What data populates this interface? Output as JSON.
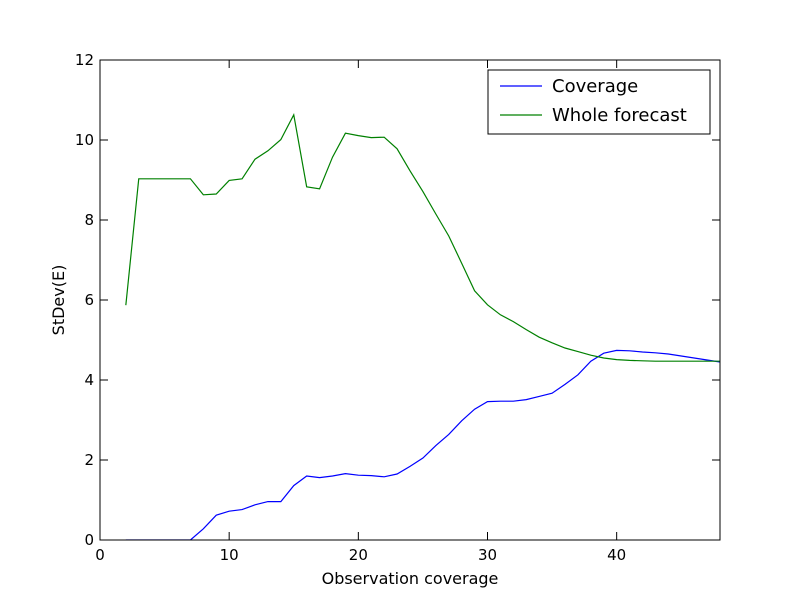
{
  "chart_data": {
    "type": "line",
    "title": "",
    "xlabel": "Observation coverage",
    "ylabel": "StDev(E)",
    "xlim": [
      0,
      48
    ],
    "ylim": [
      0,
      12
    ],
    "xticks": [
      0,
      10,
      20,
      30,
      40
    ],
    "yticks": [
      0,
      2,
      4,
      6,
      8,
      10,
      12
    ],
    "grid": false,
    "legend": "top-right",
    "series": [
      {
        "name": "Coverage",
        "color": "#0000ff",
        "x": [
          2,
          3,
          4,
          5,
          6,
          7,
          8,
          9,
          10,
          11,
          12,
          13,
          14,
          15,
          16,
          17,
          18,
          19,
          20,
          21,
          22,
          23,
          24,
          25,
          26,
          27,
          28,
          29,
          30,
          31,
          32,
          33,
          34,
          35,
          36,
          37,
          38,
          39,
          40,
          41,
          42,
          43,
          44,
          45,
          46,
          47,
          48
        ],
        "y": [
          0,
          0,
          0,
          0,
          0,
          0,
          0.28,
          0.62,
          0.72,
          0.76,
          0.88,
          0.96,
          0.96,
          1.36,
          1.6,
          1.56,
          1.6,
          1.66,
          1.62,
          1.61,
          1.58,
          1.65,
          1.84,
          2.05,
          2.36,
          2.64,
          2.98,
          3.27,
          3.46,
          3.47,
          3.47,
          3.51,
          3.59,
          3.67,
          3.89,
          4.13,
          4.47,
          4.67,
          4.74,
          4.73,
          4.7,
          4.68,
          4.65,
          4.6,
          4.55,
          4.5,
          4.45
        ]
      },
      {
        "name": "Whole forecast",
        "color": "#008000",
        "x": [
          2,
          3,
          4,
          5,
          6,
          7,
          8,
          9,
          10,
          11,
          12,
          13,
          14,
          15,
          16,
          17,
          18,
          19,
          20,
          21,
          22,
          23,
          24,
          25,
          26,
          27,
          28,
          29,
          30,
          31,
          32,
          33,
          34,
          35,
          36,
          37,
          38,
          39,
          40,
          41,
          42,
          43,
          44,
          45,
          46,
          47,
          48
        ],
        "y": [
          5.87,
          9.03,
          9.03,
          9.03,
          9.03,
          9.03,
          8.63,
          8.65,
          8.99,
          9.03,
          9.52,
          9.73,
          10.01,
          10.63,
          8.83,
          8.78,
          9.57,
          10.17,
          10.11,
          10.06,
          10.07,
          9.78,
          9.23,
          8.71,
          8.15,
          7.6,
          6.92,
          6.23,
          5.88,
          5.63,
          5.46,
          5.26,
          5.07,
          4.93,
          4.8,
          4.71,
          4.62,
          4.55,
          4.51,
          4.49,
          4.48,
          4.47,
          4.47,
          4.47,
          4.47,
          4.47,
          4.47
        ]
      }
    ]
  }
}
